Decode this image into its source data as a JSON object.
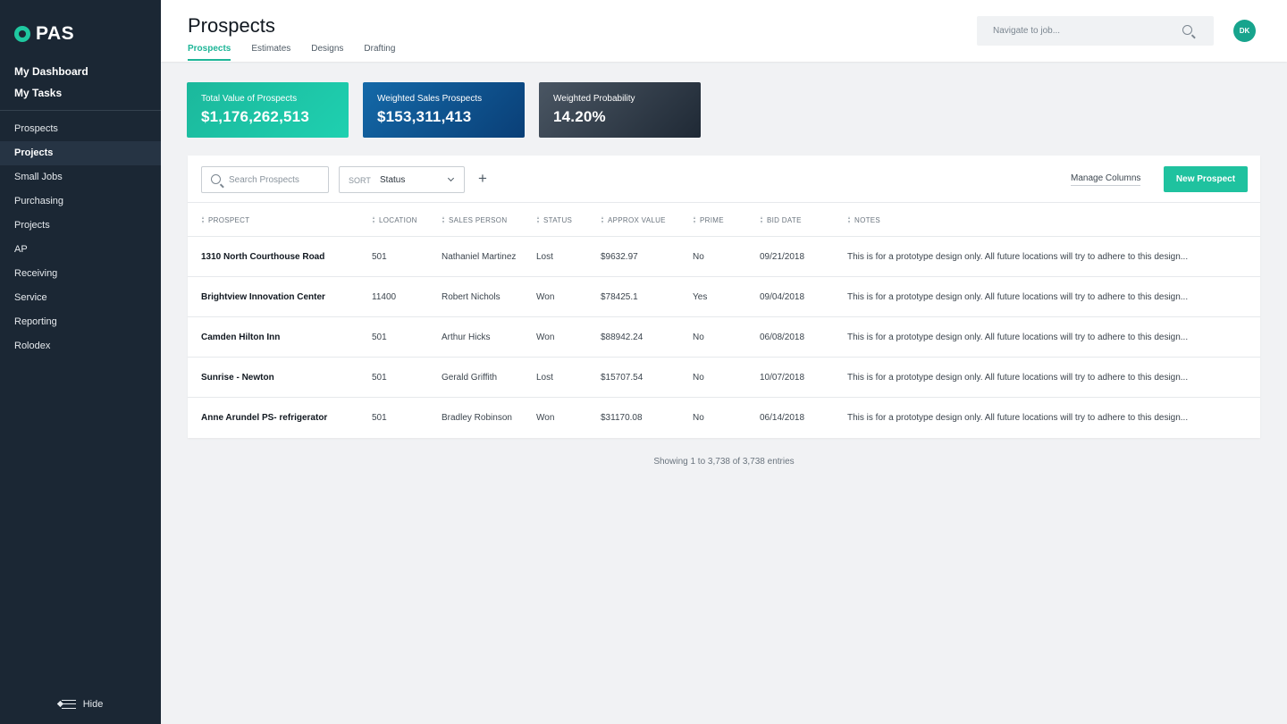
{
  "sidebar": {
    "logo": "PAS",
    "top_links": [
      "My Dashboard",
      "My Tasks"
    ],
    "items": [
      {
        "label": "Prospects",
        "active": false
      },
      {
        "label": "Projects",
        "active": true
      },
      {
        "label": "Small Jobs",
        "active": false
      },
      {
        "label": "Purchasing",
        "active": false
      },
      {
        "label": "Projects",
        "active": false
      },
      {
        "label": "AP",
        "active": false
      },
      {
        "label": "Receiving",
        "active": false
      },
      {
        "label": "Service",
        "active": false
      },
      {
        "label": "Reporting",
        "active": false
      },
      {
        "label": "Rolodex",
        "active": false
      }
    ],
    "hide_label": "Hide"
  },
  "header": {
    "title": "Prospects",
    "tabs": [
      {
        "label": "Prospects",
        "active": true
      },
      {
        "label": "Estimates",
        "active": false
      },
      {
        "label": "Designs",
        "active": false
      },
      {
        "label": "Drafting",
        "active": false
      }
    ],
    "search_placeholder": "Navigate to job...",
    "avatar_initials": "DK"
  },
  "stats": [
    {
      "label": "Total Value of Prospects",
      "value": "$1,176,262,513"
    },
    {
      "label": "Weighted Sales Prospects",
      "value": "$153,311,413"
    },
    {
      "label": "Weighted Probability",
      "value": "14.20%"
    }
  ],
  "toolbar": {
    "search_placeholder": "Search Prospects",
    "sort_label": "SORT",
    "sort_value": "Status",
    "add_symbol": "+",
    "manage_columns": "Manage Columns",
    "new_prospect": "New Prospect"
  },
  "table": {
    "columns": [
      "PROSPECT",
      "LOCATION",
      "SALES PERSON",
      "STATUS",
      "APPROX VALUE",
      "PRIME",
      "BID DATE",
      "NOTES"
    ],
    "rows": [
      {
        "prospect": "1310 North Courthouse Road",
        "location": "501",
        "sales_person": "Nathaniel Martinez",
        "status": "Lost",
        "approx_value": "$9632.97",
        "prime": "No",
        "bid_date": "09/21/2018",
        "notes": "This is for a prototype design only. All future locations will try to adhere to this design..."
      },
      {
        "prospect": "Brightview Innovation Center",
        "location": "11400",
        "sales_person": "Robert Nichols",
        "status": "Won",
        "approx_value": "$78425.1",
        "prime": "Yes",
        "bid_date": "09/04/2018",
        "notes": "This is for a prototype design only. All future locations will try to adhere to this design..."
      },
      {
        "prospect": "Camden Hilton Inn",
        "location": "501",
        "sales_person": "Arthur Hicks",
        "status": "Won",
        "approx_value": "$88942.24",
        "prime": "No",
        "bid_date": "06/08/2018",
        "notes": "This is for a prototype design only. All future locations will try to adhere to this design..."
      },
      {
        "prospect": "Sunrise - Newton",
        "location": "501",
        "sales_person": "Gerald Griffith",
        "status": "Lost",
        "approx_value": "$15707.54",
        "prime": "No",
        "bid_date": "10/07/2018",
        "notes": "This is for a prototype design only. All future locations will try to adhere to this design..."
      },
      {
        "prospect": "Anne Arundel PS- refrigerator",
        "location": "501",
        "sales_person": "Bradley Robinson",
        "status": "Won",
        "approx_value": "$31170.08",
        "prime": "No",
        "bid_date": "06/14/2018",
        "notes": "This is for a prototype design only. All future locations will try to adhere to this design..."
      }
    ],
    "footer": "Showing 1 to 3,738 of 3,738 entries"
  },
  "colors": {
    "sidebar_bg": "#1b2734",
    "accent": "#1fc29f",
    "card_teal": "#1bb89c",
    "card_blue": "#0a3f77",
    "card_dark": "#1f2935"
  }
}
